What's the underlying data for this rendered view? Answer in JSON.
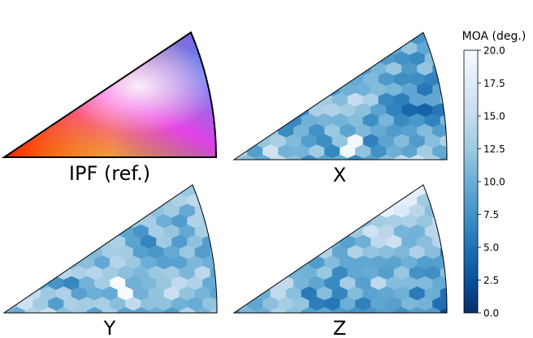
{
  "chart_data": {
    "type": "heatmap",
    "panels": [
      {
        "id": "ipf",
        "title": "IPF (ref.)",
        "kind": "ipf-color-key"
      },
      {
        "id": "x",
        "title": "X",
        "kind": "moa-map",
        "mean_deg": 11.5,
        "trend": "light cell near center-bottom, darker cells toward the edges"
      },
      {
        "id": "y",
        "title": "Y",
        "kind": "moa-map",
        "mean_deg": 12.5,
        "trend": "lighter overall, one white cell near center-bottom"
      },
      {
        "id": "z",
        "title": "Z",
        "kind": "moa-map",
        "mean_deg": 11.0,
        "trend": "light near the top apex, darker toward the bottom right"
      }
    ],
    "colorbar": {
      "label": "MOA (deg.)",
      "range": [
        0.0,
        20.0
      ],
      "ticks": [
        "0.0",
        "2.5",
        "5.0",
        "7.5",
        "10.0",
        "12.5",
        "15.0",
        "17.5",
        "20.0"
      ],
      "colormap": "Blues_r",
      "low_color": "#08306b",
      "high_color": "#f7fbff"
    }
  }
}
